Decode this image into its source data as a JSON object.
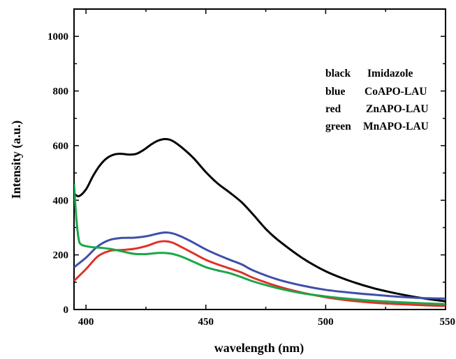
{
  "chart_data": {
    "type": "line",
    "xlabel": "wavelength (nm)",
    "ylabel": "Intensity (a.u.)",
    "xlim": [
      395,
      550
    ],
    "ylim": [
      0,
      1100
    ],
    "xticks": [
      400,
      450,
      500,
      550
    ],
    "yticks": [
      0,
      200,
      400,
      600,
      800,
      1000
    ],
    "grid": false,
    "legend_placement": "top-right",
    "legend": [
      {
        "color_word": "black",
        "label": "Imidazole"
      },
      {
        "color_word": "blue",
        "label": "CoAPO-LAU"
      },
      {
        "color_word": "red",
        "label": "ZnAPO-LAU"
      },
      {
        "color_word": "green",
        "label": "MnAPO-LAU"
      }
    ],
    "series": [
      {
        "color": "#000000",
        "x": [
          395,
          397,
          400,
          403,
          406,
          409,
          412,
          415,
          418,
          421,
          424,
          427,
          430,
          433,
          436,
          440,
          445,
          450,
          455,
          460,
          465,
          470,
          475,
          480,
          490,
          500,
          510,
          520,
          530,
          540,
          550
        ],
        "y": [
          425,
          415,
          440,
          490,
          530,
          556,
          568,
          570,
          567,
          570,
          584,
          603,
          618,
          624,
          618,
          593,
          553,
          503,
          461,
          428,
          392,
          345,
          295,
          255,
          190,
          140,
          105,
          78,
          58,
          42,
          30
        ]
      },
      {
        "color": "#3f4fa8",
        "x": [
          395,
          400,
          405,
          410,
          415,
          420,
          425,
          430,
          433,
          436,
          440,
          445,
          450,
          455,
          460,
          465,
          470,
          480,
          490,
          500,
          510,
          520,
          530,
          540,
          550
        ],
        "y": [
          155,
          190,
          232,
          255,
          262,
          263,
          268,
          278,
          282,
          279,
          266,
          244,
          220,
          200,
          182,
          165,
          142,
          110,
          88,
          72,
          62,
          54,
          47,
          42,
          40
        ]
      },
      {
        "color": "#e0302a",
        "x": [
          395,
          400,
          405,
          410,
          415,
          420,
          425,
          430,
          433,
          436,
          440,
          445,
          450,
          455,
          460,
          465,
          470,
          480,
          490,
          500,
          510,
          520,
          530,
          540,
          550
        ],
        "y": [
          105,
          148,
          195,
          215,
          218,
          222,
          232,
          247,
          250,
          245,
          228,
          205,
          182,
          165,
          150,
          135,
          115,
          85,
          62,
          45,
          33,
          25,
          20,
          16,
          13
        ]
      },
      {
        "color": "#1aa64a",
        "x": [
          395,
          396,
          397,
          398,
          400,
          403,
          406,
          410,
          415,
          420,
          425,
          430,
          433,
          436,
          440,
          445,
          450,
          455,
          460,
          465,
          470,
          480,
          490,
          500,
          510,
          520,
          530,
          540,
          550
        ],
        "y": [
          460,
          330,
          255,
          238,
          232,
          228,
          226,
          222,
          213,
          204,
          203,
          207,
          207,
          204,
          193,
          174,
          155,
          143,
          133,
          118,
          102,
          78,
          60,
          48,
          39,
          32,
          27,
          23,
          20
        ]
      }
    ]
  }
}
